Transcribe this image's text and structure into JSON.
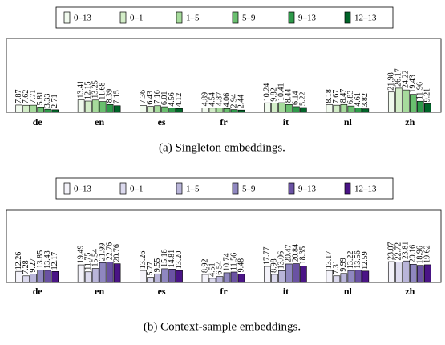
{
  "chart_data": [
    {
      "type": "bar",
      "caption": "(a) Singleton embeddings.",
      "categories": [
        "de",
        "en",
        "es",
        "fr",
        "it",
        "nl",
        "zh"
      ],
      "ylim": [
        0,
        80
      ],
      "series": [
        {
          "name": "0–13",
          "color": "#f1faee",
          "values": [
            7.87,
            13.41,
            7.36,
            4.89,
            10.24,
            8.18,
            21.98
          ],
          "value_labels": [
            "7.87",
            "13.41",
            "7.36",
            "4.89",
            "10.24",
            "8.18",
            "21.98"
          ]
        },
        {
          "name": "0–1",
          "color": "#d3edc8",
          "values": [
            7.62,
            12.15,
            6.43,
            4.54,
            9.82,
            7.67,
            26.17
          ],
          "value_labels": [
            "7.62",
            "12.15",
            "6.43",
            "4.54",
            "9.82",
            "7.67",
            "26.17"
          ]
        },
        {
          "name": "1–5",
          "color": "#a6db9c",
          "values": [
            7.71,
            13.25,
            7.16,
            4.87,
            10.41,
            8.47,
            24.22
          ],
          "value_labels": [
            "7.71",
            "13.25",
            "7.16",
            "4.87",
            "10.41",
            "8.47",
            "24.22"
          ]
        },
        {
          "name": "5–9",
          "color": "#6abf6f",
          "values": [
            5.81,
            11.68,
            6.01,
            4.06,
            8.44,
            6.83,
            19.43
          ],
          "value_labels": [
            "5.81",
            "11.68",
            "6.01",
            "4.06",
            "8.44",
            "6.83",
            "19.43"
          ]
        },
        {
          "name": "9–13",
          "color": "#2e9a4a",
          "values": [
            3.33,
            8.39,
            4.56,
            2.94,
            6.14,
            4.61,
            11.96
          ],
          "value_labels": [
            "3.33",
            "8.39",
            "4.56",
            "2.94",
            "6.14",
            "4.61",
            "11.96"
          ]
        },
        {
          "name": "12–13",
          "color": "#006428",
          "values": [
            2.71,
            7.15,
            4.12,
            2.44,
            5.22,
            3.82,
            9.21
          ],
          "value_labels": [
            "2.71",
            "7.15",
            "4.12",
            "2.44",
            "5.22",
            "3.82",
            "9.21"
          ]
        }
      ]
    },
    {
      "type": "bar",
      "caption": "(b) Context-sample embeddings.",
      "categories": [
        "de",
        "en",
        "es",
        "fr",
        "it",
        "nl",
        "zh"
      ],
      "ylim": [
        0,
        80
      ],
      "series": [
        {
          "name": "0–13",
          "color": "#f4f3fa",
          "values": [
            12.26,
            19.49,
            13.26,
            8.92,
            17.77,
            13.17,
            23.07
          ],
          "value_labels": [
            "12.26",
            "19.49",
            "13.26",
            "8.92",
            "17.77",
            "13.17",
            "23.07"
          ]
        },
        {
          "name": "0–1",
          "color": "#dcdaee",
          "values": [
            7.28,
            11.75,
            5.77,
            4.51,
            8.98,
            7.31,
            22.72
          ],
          "value_labels": [
            "7.28",
            "11.75",
            "5.77",
            "4.51",
            "8.98",
            "7.31",
            "22.72"
          ]
        },
        {
          "name": "1–5",
          "color": "#b9b5d9",
          "values": [
            9.27,
            15.54,
            9.55,
            6.54,
            13.06,
            9.99,
            23.81
          ],
          "value_labels": [
            "9.27",
            "15.54",
            "9.55",
            "6.54",
            "13.06",
            "9.99",
            "23.81"
          ]
        },
        {
          "name": "5–9",
          "color": "#8f87c0",
          "values": [
            13.85,
            21.99,
            15.18,
            10.74,
            20.47,
            13.22,
            20.16
          ],
          "value_labels": [
            "13.85",
            "21.99",
            "15.18",
            "10.74",
            "20.47",
            "13.22",
            "20.16"
          ]
        },
        {
          "name": "9–13",
          "color": "#6a52a3",
          "values": [
            13.43,
            22.76,
            14.81,
            11.56,
            20.84,
            13.56,
            18.96
          ],
          "value_labels": [
            "13.43",
            "22.76",
            "14.81",
            "11.56",
            "20.84",
            "13.56",
            "18.96"
          ]
        },
        {
          "name": "12–13",
          "color": "#4a1486",
          "values": [
            12.17,
            20.76,
            13.2,
            9.48,
            18.35,
            12.59,
            19.62
          ],
          "value_labels": [
            "12.17",
            "20.76",
            "13.20",
            "9.48",
            "18.35",
            "12.59",
            "19.62"
          ]
        }
      ]
    }
  ]
}
